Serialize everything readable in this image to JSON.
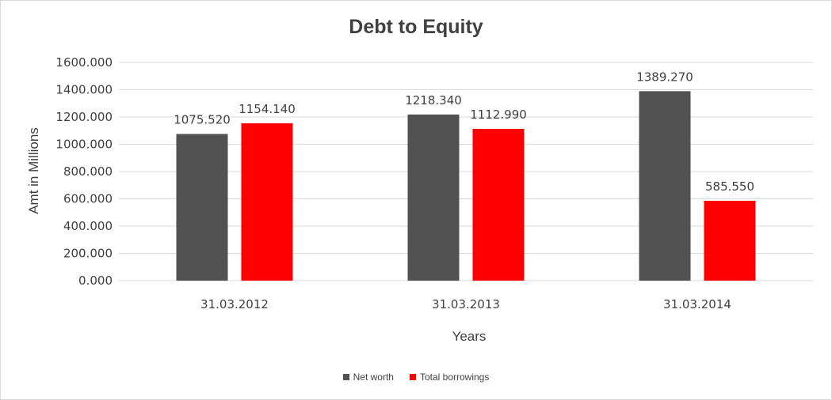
{
  "chart_data": {
    "type": "bar",
    "title": "Debt to Equity",
    "xlabel": "Years",
    "ylabel": "Amt in Millions",
    "categories": [
      "31.03.2012",
      "31.03.2013",
      "31.03.2014"
    ],
    "series": [
      {
        "name": "Net worth",
        "color": "#515151",
        "values": [
          1075.52,
          1218.34,
          1389.27
        ],
        "labels": [
          "1075.520",
          "1218.340",
          "1389.270"
        ]
      },
      {
        "name": "Total borrowings",
        "color": "#ff0000",
        "values": [
          1154.14,
          1112.99,
          585.55
        ],
        "labels": [
          "1154.140",
          "1112.990",
          "585.550"
        ]
      }
    ],
    "ylim": [
      0,
      1600
    ],
    "yticks": [
      0,
      200,
      400,
      600,
      800,
      1000,
      1200,
      1400,
      1600
    ],
    "ytick_labels": [
      "0.000",
      "200.000",
      "400.000",
      "600.000",
      "800.000",
      "1000.000",
      "1200.000",
      "1400.000",
      "1600.000"
    ],
    "grid": true,
    "legend_position": "bottom"
  }
}
